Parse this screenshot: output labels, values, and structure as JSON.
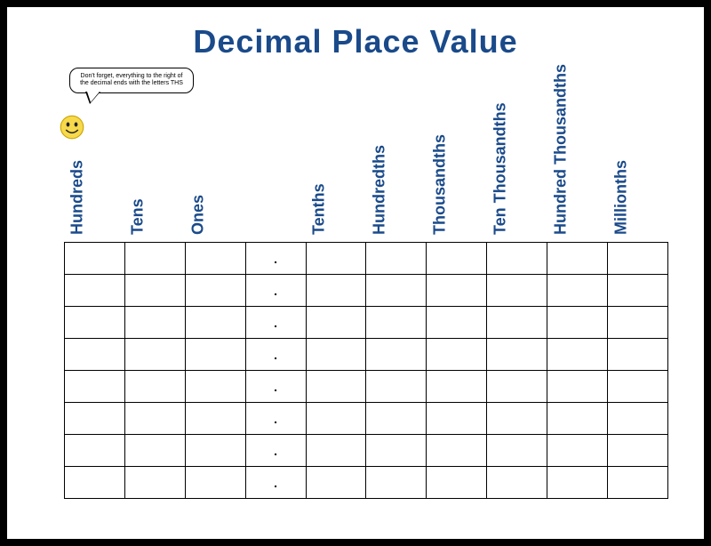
{
  "title": "Decimal Place Value",
  "title_color": "#1a4a8a",
  "header_color": "#1a4a8a",
  "speech_text": "Don't forget, everything to the right of the decimal ends with the letters THS",
  "columns": [
    "Hundreds",
    "Tens",
    "Ones",
    "",
    "Tenths",
    "Hundredths",
    "Thousandths",
    "Ten Thousandths",
    "Hundred Thousandths",
    "Millionths"
  ],
  "decimal_column_index": 3,
  "decimal_symbol": ".",
  "row_count": 8,
  "col_count": 10,
  "cell_border_color": "#000000",
  "background_color": "#ffffff",
  "outer_background": "#000000",
  "smiley": {
    "face_fill": "#f7d94c",
    "face_stroke": "#c9a500",
    "eye_fill": "#222222"
  }
}
